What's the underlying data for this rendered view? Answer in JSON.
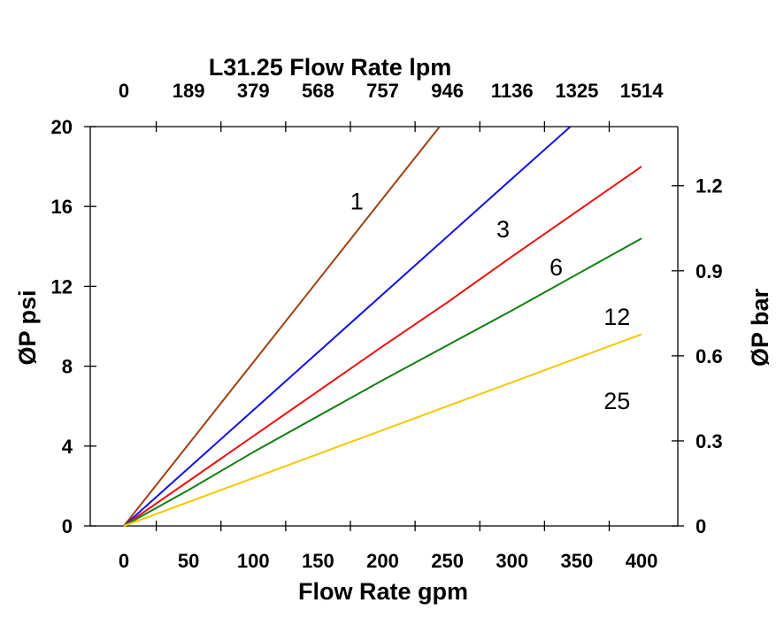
{
  "chart_data": {
    "type": "line",
    "title": "L31.25 Flow Rate lpm",
    "xlabel": "Flow Rate gpm",
    "ylabel": "ØP psi",
    "y2label": "ØP bar",
    "xlim": [
      -26,
      428
    ],
    "ylim": [
      0,
      20
    ],
    "x_ticks": [
      0,
      50,
      100,
      150,
      200,
      250,
      300,
      350,
      400
    ],
    "y_ticks": [
      0,
      4,
      8,
      12,
      16,
      20
    ],
    "top_tick_labels": [
      "0",
      "189",
      "379",
      "568",
      "757",
      "946",
      "1136",
      "1325",
      "1514"
    ],
    "y2_ticks": [
      "0",
      "0.3",
      "0.6",
      "0.9",
      "1.2"
    ],
    "y2_tick_values": [
      0,
      0.3,
      0.6,
      0.9,
      1.2
    ],
    "psi_per_bar": 14.2,
    "grid": false,
    "series": [
      {
        "name": "1",
        "color": "#a0400f",
        "points": [
          [
            0,
            0
          ],
          [
            100,
            8.2
          ],
          [
            200,
            16.4
          ],
          [
            244,
            20
          ]
        ],
        "label_at": [
          180,
          16.3
        ]
      },
      {
        "name": "3",
        "color": "#1010ee",
        "points": [
          [
            0,
            0
          ],
          [
            100,
            5.8
          ],
          [
            200,
            11.6
          ],
          [
            300,
            17.4
          ],
          [
            345,
            20
          ]
        ],
        "label_at": [
          293,
          14.9
        ]
      },
      {
        "name": "6",
        "color": "#ee1010",
        "points": [
          [
            0,
            0
          ],
          [
            100,
            4.5
          ],
          [
            200,
            9.0
          ],
          [
            250,
            11.2
          ],
          [
            300,
            13.5
          ],
          [
            400,
            18.0
          ]
        ],
        "label_at": [
          334,
          13.0
        ]
      },
      {
        "name": "12",
        "color": "#108010",
        "points": [
          [
            0,
            0
          ],
          [
            50,
            1.8
          ],
          [
            100,
            3.7
          ],
          [
            200,
            7.3
          ],
          [
            300,
            10.8
          ],
          [
            400,
            14.4
          ]
        ],
        "label_at": [
          381,
          10.5
        ]
      },
      {
        "name": "25",
        "color": "#f5c800",
        "points": [
          [
            0,
            0
          ],
          [
            100,
            2.4
          ],
          [
            200,
            4.8
          ],
          [
            300,
            7.2
          ],
          [
            400,
            9.6
          ]
        ],
        "label_at": [
          381,
          6.3
        ]
      }
    ]
  }
}
